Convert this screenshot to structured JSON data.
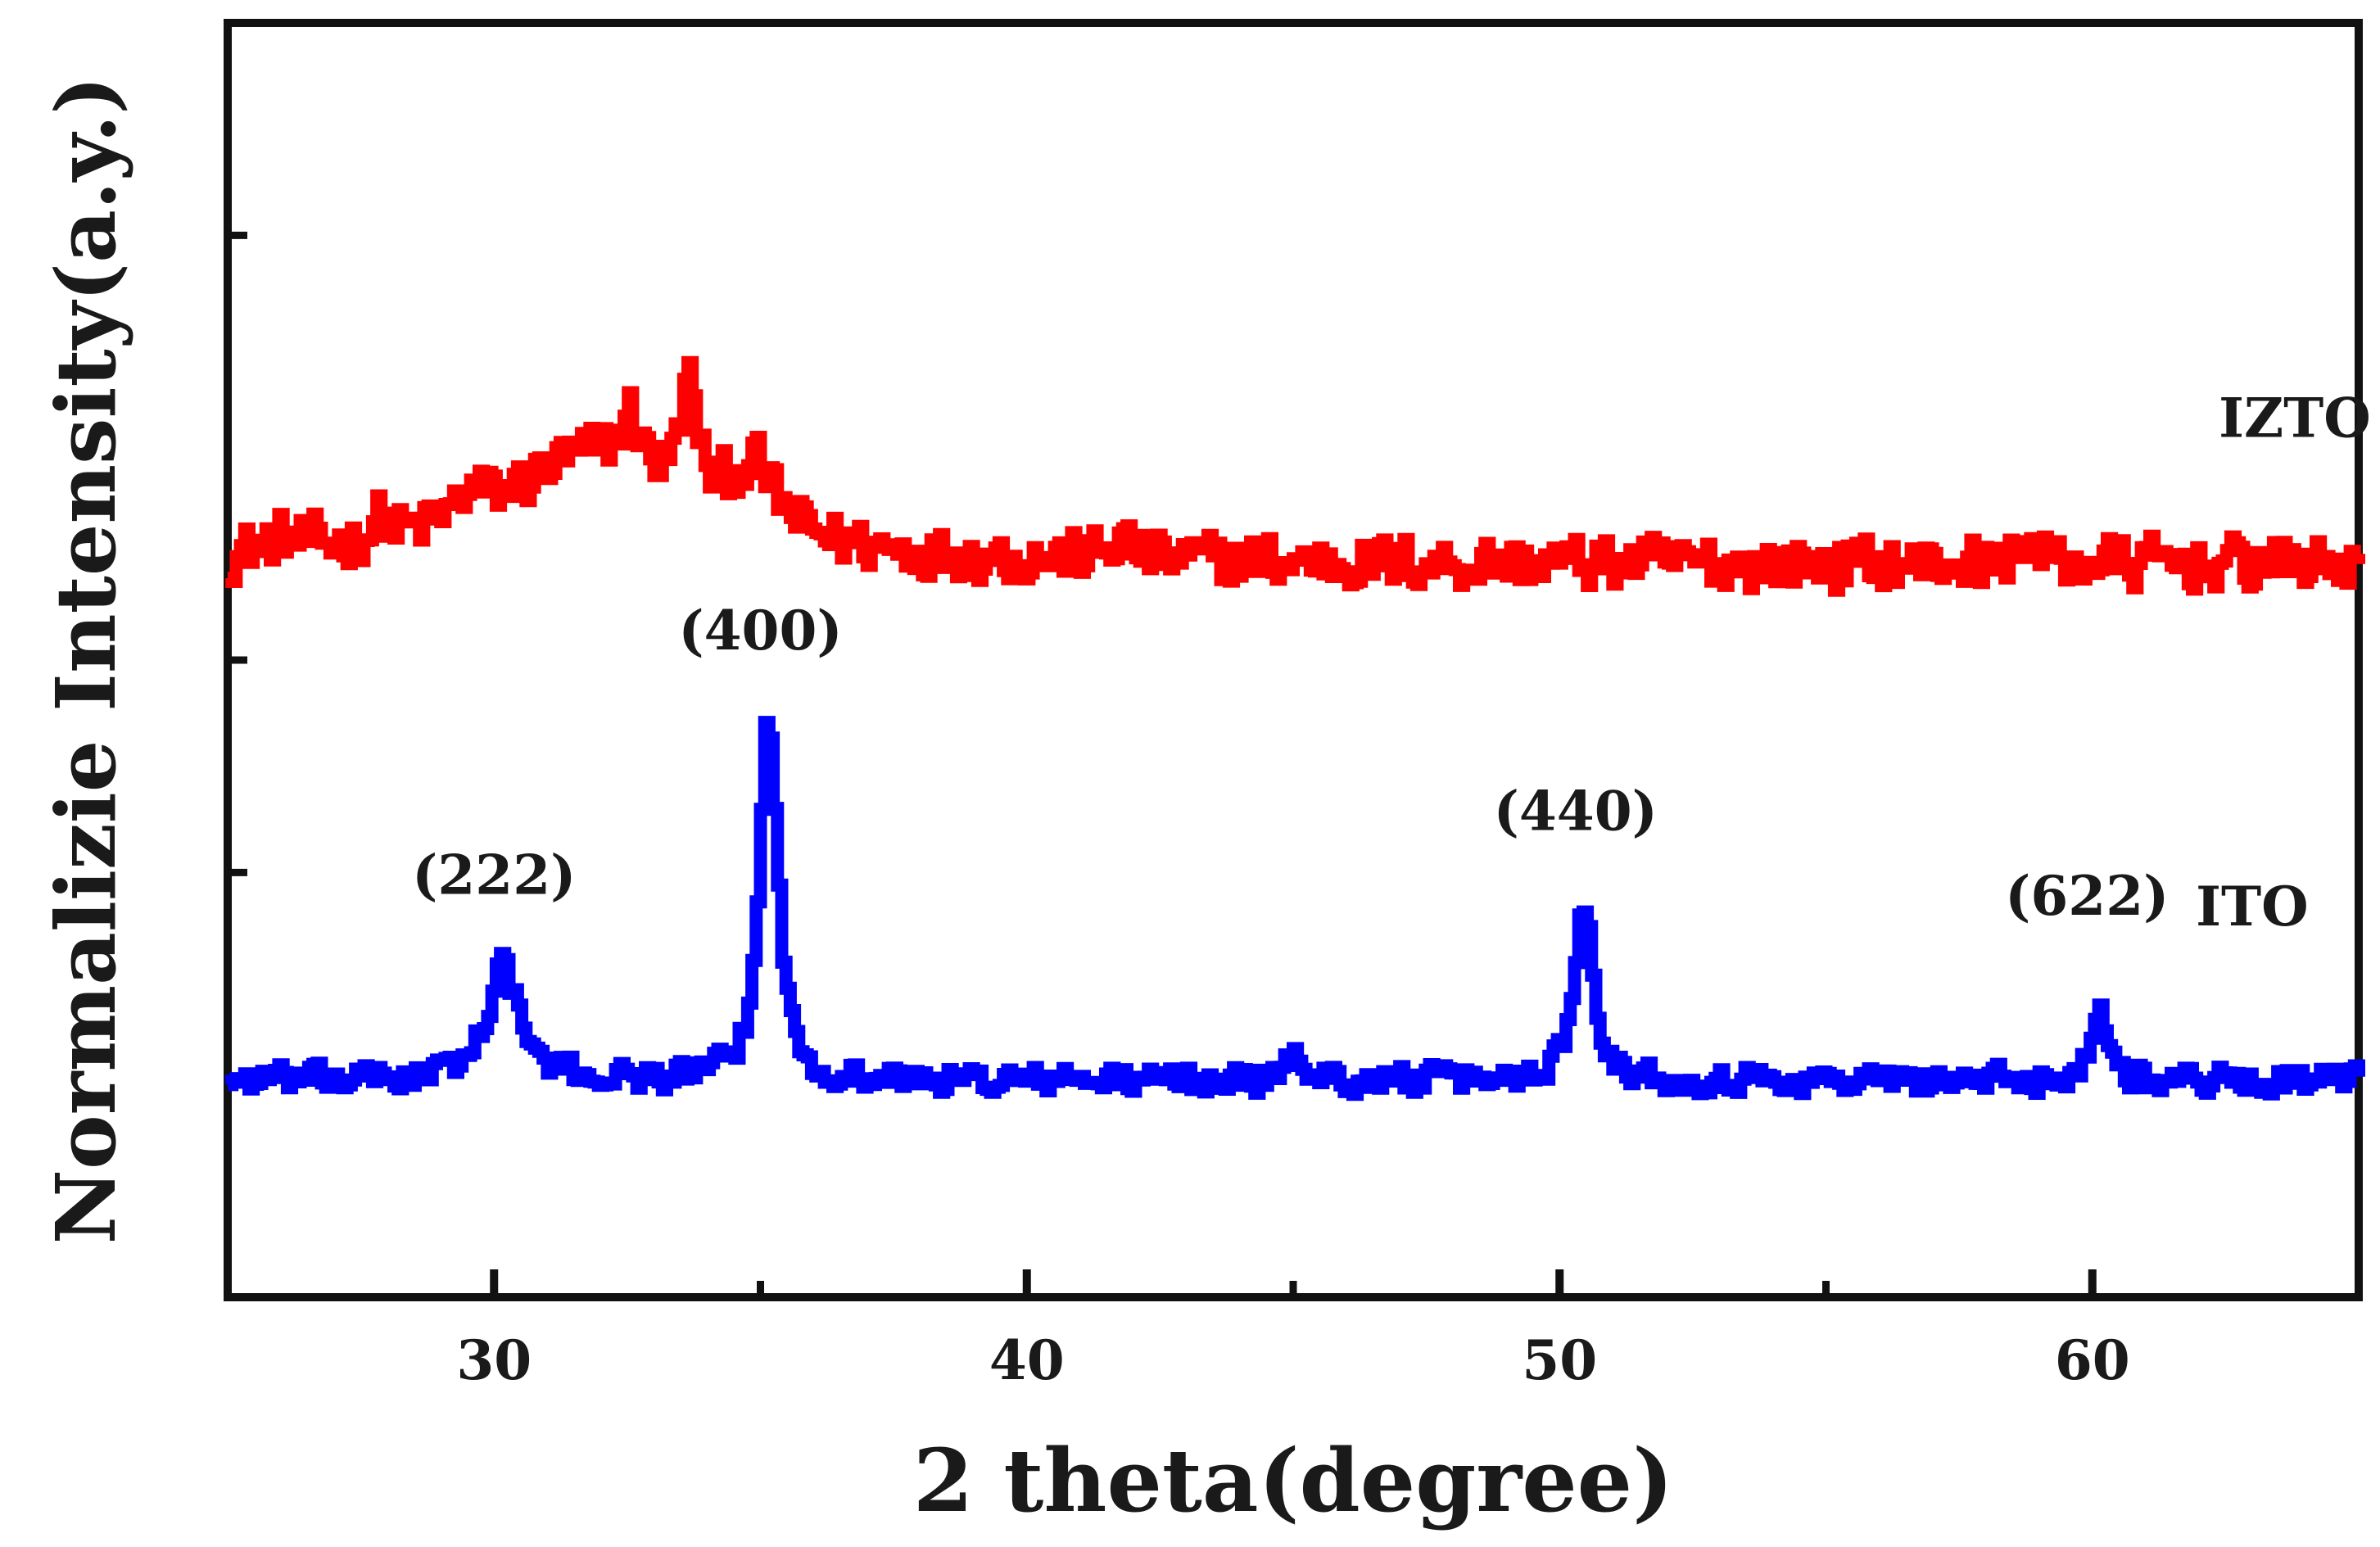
{
  "chart_data": {
    "type": "line",
    "title": "",
    "xlabel": "2 theta(degree)",
    "ylabel": "Normalizie Intensity(a.y.)",
    "xlim": [
      25,
      65
    ],
    "ylim": [
      0,
      6
    ],
    "x_ticks": [
      30,
      40,
      50,
      60
    ],
    "x_tick_labels": [
      "30",
      "40",
      "50",
      "60"
    ],
    "y_ticks": [
      1.0,
      2.0,
      3.0,
      5.0
    ],
    "y_tick_labels_shown": false,
    "grid": false,
    "legend": "none",
    "series": [
      {
        "name": "IZTO",
        "color": "#ff0000",
        "peaks": [
          {
            "x": 26.0,
            "height": 0.06,
            "width": 0.4
          },
          {
            "x": 27.8,
            "height": 0.1,
            "width": 0.2
          },
          {
            "x": 29.5,
            "height": 0.12,
            "width": 0.3
          },
          {
            "x": 31.8,
            "height": 0.5,
            "width": 2.2
          },
          {
            "x": 32.5,
            "height": 0.25,
            "width": 0.2
          },
          {
            "x": 33.6,
            "height": 0.55,
            "width": 0.18
          },
          {
            "x": 34.8,
            "height": 0.3,
            "width": 0.5
          },
          {
            "x": 41.7,
            "height": 0.1,
            "width": 0.2
          },
          {
            "x": 58.7,
            "height": 0.15,
            "width": 0.15
          }
        ],
        "baseline": 3.45,
        "noise": 0.3,
        "label_x": 63.8,
        "label_y": 4.05
      },
      {
        "name": "ITO",
        "color": "#0000ff",
        "peaks": [
          {
            "x": 30.1,
            "height": 0.55,
            "width": 0.35
          },
          {
            "x": 35.1,
            "height": 1.85,
            "width": 0.18
          },
          {
            "x": 50.4,
            "height": 0.9,
            "width": 0.2
          },
          {
            "x": 60.1,
            "height": 0.35,
            "width": 0.18
          },
          {
            "x": 45.0,
            "height": 0.15,
            "width": 0.15
          }
        ],
        "baseline": 1.02,
        "noise": 0.16,
        "label_x": 63.0,
        "label_y": 1.75
      }
    ],
    "annotations": [
      {
        "text": "(222)",
        "x": 30.0,
        "y": 1.9
      },
      {
        "text": "(400)",
        "x": 35.0,
        "y": 3.05
      },
      {
        "text": "(440)",
        "x": 50.3,
        "y": 2.2
      },
      {
        "text": "(622)",
        "x": 59.9,
        "y": 1.8
      }
    ]
  }
}
